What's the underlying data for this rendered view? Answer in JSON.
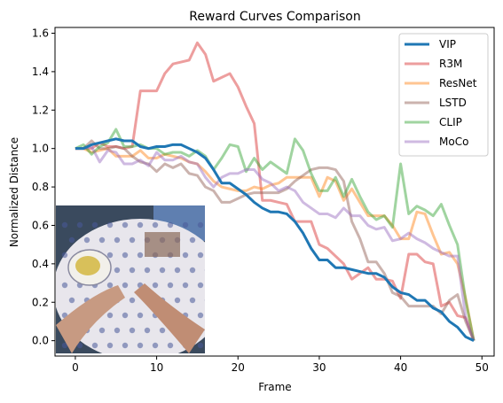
{
  "chart_data": {
    "type": "line",
    "title": "Reward Curves Comparison",
    "xlabel": "Frame",
    "ylabel": "Normalized Distance",
    "xlim": [
      -2.5,
      51.5
    ],
    "ylim": [
      -0.08,
      1.63
    ],
    "xticks": [
      0,
      10,
      20,
      30,
      40,
      50
    ],
    "yticks": [
      0.0,
      0.2,
      0.4,
      0.6,
      0.8,
      1.0,
      1.2,
      1.4,
      1.6
    ],
    "legend_position": "top-right",
    "grid": false,
    "inset_image": "tabletop scene with plate and hands",
    "series": [
      {
        "name": "VIP",
        "color": "#1f77b4",
        "alpha": 1.0,
        "values": [
          1.0,
          1.0,
          1.02,
          1.03,
          1.04,
          1.05,
          1.04,
          1.04,
          1.01,
          1.0,
          1.01,
          1.01,
          1.02,
          1.02,
          1.0,
          0.98,
          0.95,
          0.89,
          0.82,
          0.82,
          0.79,
          0.76,
          0.72,
          0.69,
          0.67,
          0.67,
          0.66,
          0.62,
          0.56,
          0.48,
          0.42,
          0.42,
          0.38,
          0.38,
          0.37,
          0.36,
          0.35,
          0.35,
          0.33,
          0.28,
          0.25,
          0.24,
          0.21,
          0.21,
          0.17,
          0.15,
          0.1,
          0.07,
          0.02,
          0.0
        ]
      },
      {
        "name": "R3M",
        "color": "#d62728",
        "alpha": 0.45,
        "values": [
          1.0,
          1.0,
          1.0,
          1.03,
          1.01,
          1.01,
          1.0,
          1.01,
          1.3,
          1.3,
          1.3,
          1.39,
          1.44,
          1.45,
          1.46,
          1.55,
          1.49,
          1.35,
          1.37,
          1.39,
          1.32,
          1.22,
          1.13,
          0.73,
          0.73,
          0.72,
          0.71,
          0.62,
          0.62,
          0.62,
          0.5,
          0.48,
          0.44,
          0.4,
          0.32,
          0.35,
          0.38,
          0.32,
          0.32,
          0.31,
          0.22,
          0.45,
          0.45,
          0.41,
          0.4,
          0.18,
          0.2,
          0.13,
          0.12,
          0.0
        ]
      },
      {
        "name": "ResNet",
        "color": "#ff7f0e",
        "alpha": 0.45,
        "values": [
          1.0,
          1.0,
          0.98,
          0.99,
          1.0,
          0.96,
          0.96,
          0.96,
          0.99,
          0.95,
          0.95,
          0.97,
          0.96,
          0.95,
          0.93,
          0.92,
          0.88,
          0.83,
          0.8,
          0.79,
          0.78,
          0.78,
          0.8,
          0.79,
          0.81,
          0.82,
          0.85,
          0.85,
          0.85,
          0.85,
          0.75,
          0.85,
          0.83,
          0.73,
          0.79,
          0.72,
          0.65,
          0.65,
          0.65,
          0.6,
          0.53,
          0.53,
          0.67,
          0.66,
          0.55,
          0.45,
          0.46,
          0.4,
          0.22,
          0.0
        ]
      },
      {
        "name": "LSTD",
        "color": "#8c564b",
        "alpha": 0.45,
        "values": [
          1.0,
          1.0,
          1.04,
          1.0,
          1.0,
          1.01,
          1.0,
          0.96,
          0.93,
          0.92,
          0.88,
          0.92,
          0.9,
          0.92,
          0.87,
          0.86,
          0.8,
          0.78,
          0.72,
          0.72,
          0.74,
          0.76,
          0.77,
          0.77,
          0.77,
          0.77,
          0.79,
          0.83,
          0.86,
          0.89,
          0.9,
          0.9,
          0.89,
          0.83,
          0.62,
          0.53,
          0.41,
          0.41,
          0.35,
          0.25,
          0.23,
          0.18,
          0.18,
          0.18,
          0.18,
          0.14,
          0.21,
          0.24,
          0.1,
          0.0
        ]
      },
      {
        "name": "CLIP",
        "color": "#2ca02c",
        "alpha": 0.45,
        "values": [
          1.0,
          1.02,
          0.97,
          1.01,
          1.03,
          1.1,
          1.01,
          1.01,
          1.02,
          1.0,
          1.0,
          0.97,
          0.98,
          0.98,
          0.96,
          0.99,
          0.96,
          0.89,
          0.95,
          1.02,
          1.01,
          0.88,
          0.95,
          0.89,
          0.93,
          0.9,
          0.87,
          1.05,
          0.99,
          0.87,
          0.78,
          0.78,
          0.85,
          0.75,
          0.84,
          0.75,
          0.67,
          0.63,
          0.65,
          0.59,
          0.92,
          0.66,
          0.7,
          0.68,
          0.65,
          0.71,
          0.6,
          0.5,
          0.21,
          0.0
        ]
      },
      {
        "name": "MoCo",
        "color": "#9467bd",
        "alpha": 0.45,
        "values": [
          1.0,
          1.0,
          1.01,
          0.93,
          0.99,
          0.98,
          0.92,
          0.92,
          0.94,
          0.91,
          0.98,
          0.94,
          0.94,
          0.96,
          0.93,
          0.92,
          0.85,
          0.8,
          0.85,
          0.87,
          0.87,
          0.89,
          0.89,
          0.84,
          0.82,
          0.78,
          0.8,
          0.78,
          0.72,
          0.69,
          0.66,
          0.66,
          0.64,
          0.69,
          0.65,
          0.65,
          0.6,
          0.58,
          0.59,
          0.52,
          0.53,
          0.56,
          0.53,
          0.51,
          0.48,
          0.46,
          0.44,
          0.44,
          0.12,
          0.0
        ]
      }
    ]
  }
}
